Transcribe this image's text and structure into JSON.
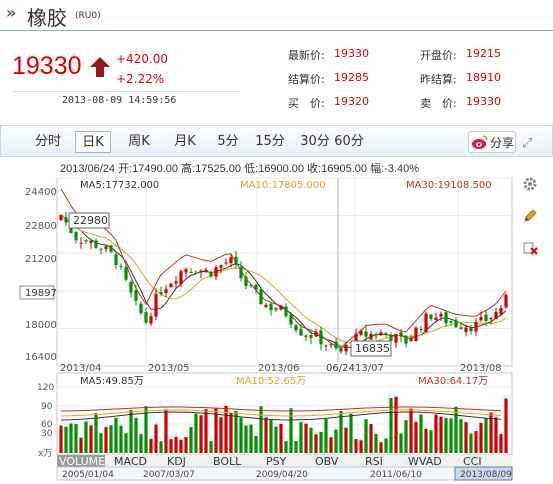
{
  "header": {
    "title": "橡胶",
    "code": "(RU0)",
    "arrow": "»"
  },
  "quote": {
    "price": "19330",
    "change": "+420.00",
    "change_pct": "+2.22%",
    "datetime": "2013-08-09  14:59:56",
    "fields": [
      {
        "label": "最新价:",
        "value": "19330"
      },
      {
        "label": "开盘价:",
        "value": "19215"
      },
      {
        "label": "结算价:",
        "value": "19285"
      },
      {
        "label": "昨结算:",
        "value": "18910"
      },
      {
        "label": "买　价:",
        "value": "19320"
      },
      {
        "label": "卖　价:",
        "value": "19330"
      }
    ]
  },
  "tabs": [
    "分时",
    "日K",
    "周K",
    "月K",
    "5分",
    "15分",
    "30分",
    "60分"
  ],
  "active_tab": "日K",
  "share_label": "分享",
  "expand_icon": "⤢",
  "info_bar": "2013/06/24  开:17490.00  高:17525.00  低:16900.00  收:16905.00  幅:-3.40%",
  "ma": {
    "ma5": "MA5:17732.000",
    "ma10": "MA10:17805.000",
    "ma30": "MA30:19108.500"
  },
  "y_ticks": [
    "24400",
    "22800",
    "21200",
    "19897",
    "18000",
    "16400"
  ],
  "x_ticks": [
    "2013/04",
    "2013/05",
    "2013/06",
    "06/24",
    "13/07",
    "2013/08"
  ],
  "labels": {
    "high": "22980",
    "low": "16835"
  },
  "volume": {
    "ma5": "MA5:49.85万",
    "ma10": "MA10:52.65万",
    "ma30": "MA30:64.17万",
    "y_ticks": [
      "120",
      "90",
      "60",
      "30"
    ],
    "unit": "x万"
  },
  "indicators": [
    "VOLUME",
    "MACD",
    "KDJ",
    "BOLL",
    "PSY",
    "OBV",
    "RSI",
    "WVAD",
    "CCI"
  ],
  "bottom_dates": [
    "2005/01/04",
    "2007/03/07",
    "2009/04/20",
    "2011/06/10",
    "2013/08/09"
  ],
  "colors": {
    "up": "#d00000",
    "down": "#009000",
    "ma5": "#333333",
    "ma10": "#e8a020",
    "ma30": "#c03020",
    "accent": "#2a5fb0"
  },
  "tools": [
    "settings-icon",
    "pencil-icon",
    "delete-icon"
  ],
  "chart_data": {
    "type": "candlestick",
    "start": "2013-04-01",
    "end": "2013-08-09",
    "price_range": [
      16400,
      24400
    ],
    "volume_range": [
      0,
      130
    ]
  }
}
